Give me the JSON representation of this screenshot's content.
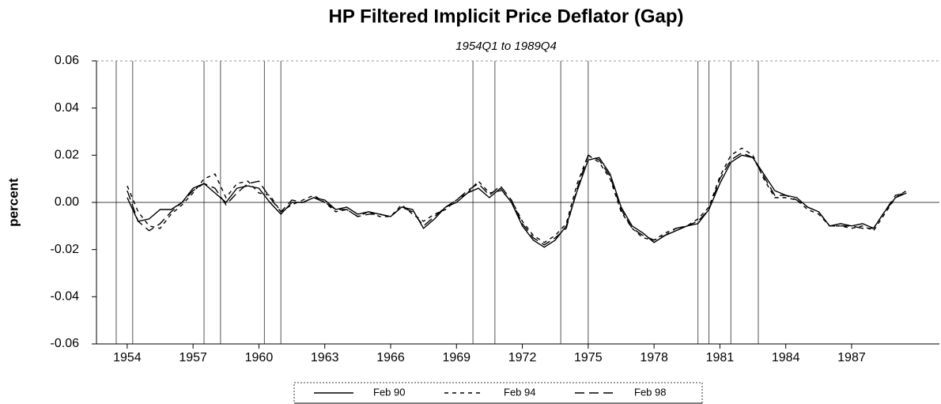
{
  "chart_data": {
    "type": "line",
    "title": "HP Filtered Implicit Price Deflator (Gap)",
    "subtitle": "1954Q1 to 1989Q4",
    "y_label": "percent",
    "ylim": [
      -0.06,
      0.06
    ],
    "yticks": [
      0.06,
      0.04,
      0.02,
      {
        "value": 0,
        "label": "0.00"
      },
      -0.02,
      -0.04,
      -0.06
    ],
    "xlim": [
      1952.6,
      1991
    ],
    "xticks": [
      1954,
      1957,
      1960,
      1963,
      1966,
      1969,
      1972,
      1975,
      1978,
      1981,
      1984,
      1987
    ],
    "recessions": [
      [
        1953.5,
        1954.25
      ],
      [
        1957.5,
        1958.25
      ],
      [
        1960.25,
        1961
      ],
      [
        1969.75,
        1970.75
      ],
      [
        1973.75,
        1975
      ],
      [
        1980,
        1980.5
      ],
      [
        1981.5,
        1982.75
      ]
    ],
    "x": [
      1954,
      1954.5,
      1955,
      1955.5,
      1956,
      1956.5,
      1957,
      1957.5,
      1958,
      1958.5,
      1959,
      1959.5,
      1960,
      1960.5,
      1961,
      1961.5,
      1962,
      1962.5,
      1963,
      1963.5,
      1964,
      1964.5,
      1965,
      1965.5,
      1966,
      1966.5,
      1967,
      1967.5,
      1968,
      1968.5,
      1969,
      1969.5,
      1970,
      1970.5,
      1971,
      1971.5,
      1972,
      1972.5,
      1973,
      1973.5,
      1974,
      1974.5,
      1975,
      1975.5,
      1976,
      1976.5,
      1977,
      1977.5,
      1978,
      1978.5,
      1979,
      1979.5,
      1980,
      1980.5,
      1981,
      1981.5,
      1982,
      1982.5,
      1983,
      1983.5,
      1984,
      1984.5,
      1985,
      1985.5,
      1986,
      1986.5,
      1987,
      1987.5,
      1988,
      1988.5,
      1989,
      1989.5
    ],
    "series": [
      {
        "name": "Feb 90",
        "color": "#000000",
        "line_style": "solid",
        "values": [
          0.002,
          -0.008,
          -0.007,
          -0.003,
          -0.003,
          0.0,
          0.006,
          0.008,
          0.004,
          0.0,
          0.006,
          0.007,
          0.006,
          0.0,
          -0.005,
          0.0,
          0.0,
          0.002,
          0.001,
          -0.003,
          -0.002,
          -0.005,
          -0.004,
          -0.005,
          -0.006,
          -0.002,
          -0.003,
          -0.011,
          -0.007,
          -0.002,
          0.0,
          0.004,
          0.006,
          0.002,
          0.006,
          0.0,
          -0.01,
          -0.016,
          -0.019,
          -0.016,
          -0.01,
          0.005,
          0.018,
          0.019,
          0.012,
          -0.002,
          -0.01,
          -0.013,
          -0.017,
          -0.014,
          -0.012,
          -0.01,
          -0.009,
          -0.003,
          0.008,
          0.017,
          0.02,
          0.019,
          0.012,
          0.005,
          0.003,
          0.002,
          -0.002,
          -0.004,
          -0.01,
          -0.009,
          -0.01,
          -0.009,
          -0.011,
          -0.004,
          0.002,
          0.004
        ]
      },
      {
        "name": "Feb 94",
        "color": "#000000",
        "line_style": "short-dash",
        "values": [
          0.007,
          -0.004,
          -0.01,
          -0.011,
          -0.005,
          -0.001,
          0.004,
          0.01,
          0.012,
          0.002,
          0.008,
          0.009,
          0.004,
          0.003,
          -0.004,
          -0.001,
          0.001,
          0.003,
          0.0,
          -0.004,
          -0.003,
          -0.006,
          -0.004,
          -0.006,
          -0.006,
          -0.001,
          -0.005,
          -0.008,
          -0.005,
          -0.003,
          0.001,
          0.004,
          0.009,
          0.004,
          0.005,
          0.001,
          -0.008,
          -0.014,
          -0.017,
          -0.014,
          -0.009,
          0.008,
          0.02,
          0.017,
          0.01,
          -0.004,
          -0.011,
          -0.015,
          -0.016,
          -0.013,
          -0.011,
          -0.01,
          -0.007,
          -0.002,
          0.011,
          0.02,
          0.023,
          0.02,
          0.01,
          0.002,
          0.002,
          0.001,
          -0.003,
          -0.005,
          -0.01,
          -0.01,
          -0.011,
          -0.01,
          -0.012,
          -0.005,
          0.002,
          0.005
        ]
      },
      {
        "name": "Feb 98",
        "color": "#000000",
        "line_style": "long-dash",
        "values": [
          0.005,
          -0.008,
          -0.012,
          -0.009,
          -0.004,
          0.0,
          0.005,
          0.008,
          0.006,
          -0.001,
          0.004,
          0.008,
          0.009,
          0.002,
          -0.004,
          0.001,
          0.0,
          0.002,
          0.0,
          -0.003,
          -0.003,
          -0.006,
          -0.005,
          -0.005,
          -0.006,
          -0.002,
          -0.004,
          -0.01,
          -0.006,
          -0.002,
          0.001,
          0.005,
          0.008,
          0.003,
          0.007,
          0.001,
          -0.009,
          -0.015,
          -0.018,
          -0.015,
          -0.011,
          0.006,
          0.02,
          0.018,
          0.011,
          -0.003,
          -0.011,
          -0.014,
          -0.016,
          -0.014,
          -0.011,
          -0.01,
          -0.008,
          -0.003,
          0.01,
          0.018,
          0.021,
          0.019,
          0.011,
          0.003,
          0.003,
          0.001,
          -0.002,
          -0.004,
          -0.01,
          -0.01,
          -0.01,
          -0.011,
          -0.011,
          -0.004,
          0.003,
          0.004
        ]
      }
    ],
    "legend": "bottom"
  }
}
